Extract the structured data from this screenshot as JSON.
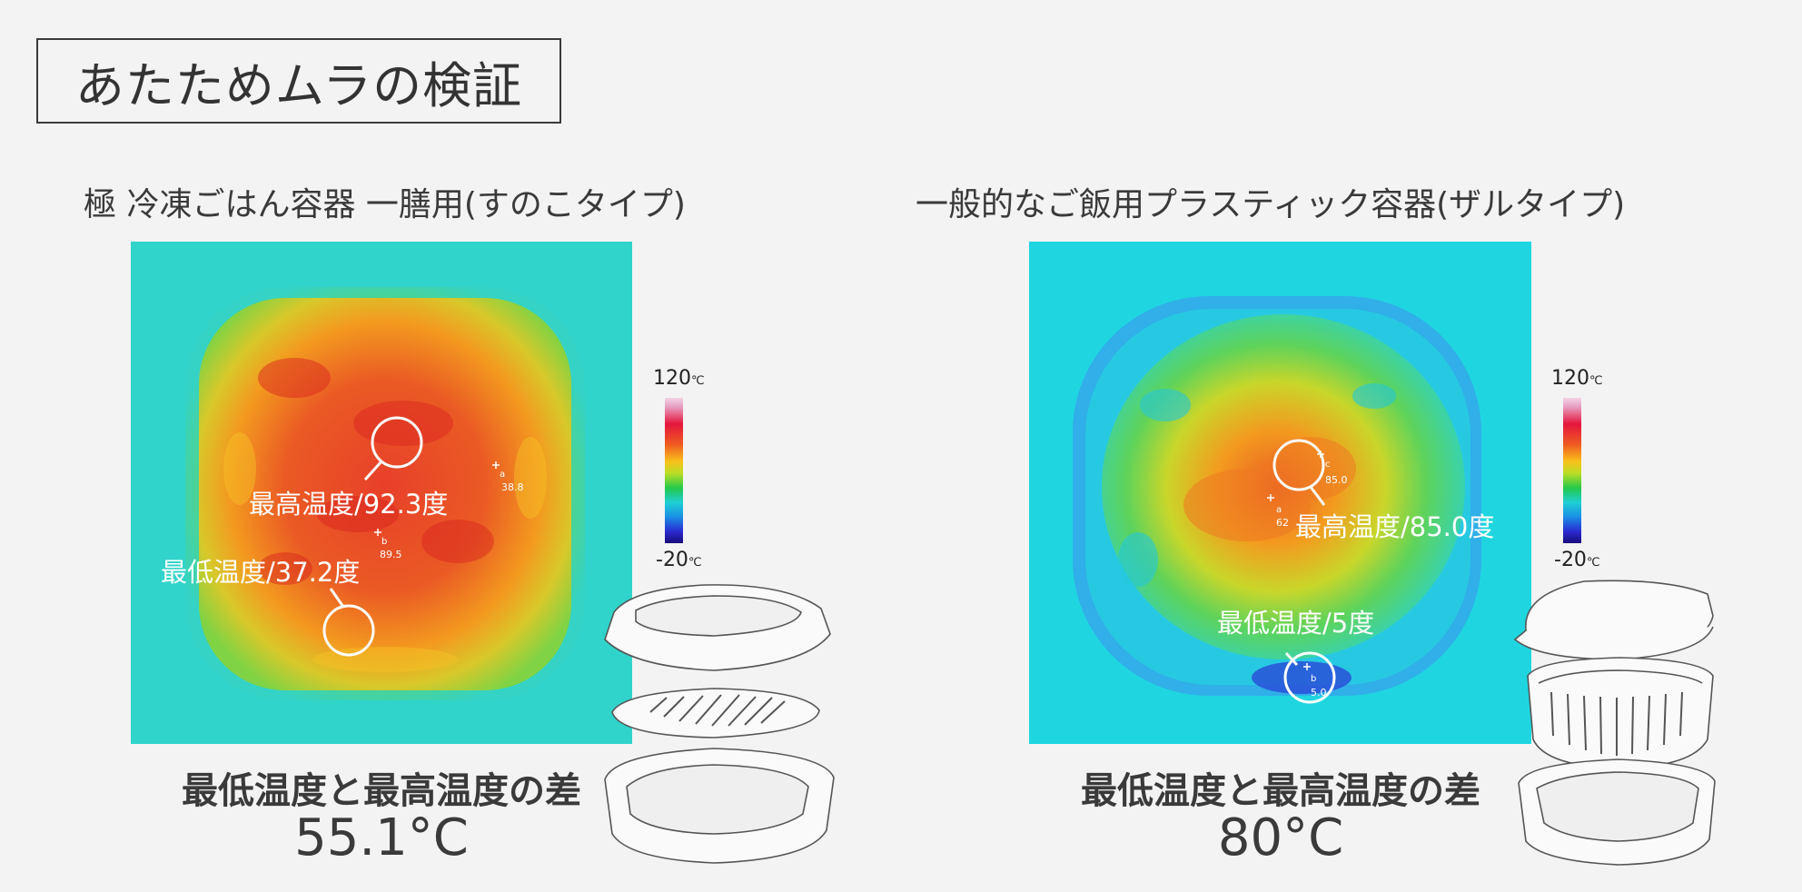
{
  "title": "あたためムラの検証",
  "scale": {
    "max": "120",
    "min": "-20",
    "unit": "℃"
  },
  "left_panel": {
    "heading": "極 冷凍ごはん容器 一膳用(すのこタイプ)",
    "max_label": "最高温度/92.3度",
    "min_label": "最低温度/37.2度",
    "point_a": {
      "letter": "a",
      "value": "38.8"
    },
    "point_b": {
      "letter": "b",
      "value": "89.5"
    },
    "diff_label": "最低温度と最高温度の差",
    "diff_value": "55.1°C"
  },
  "right_panel": {
    "heading": "一般的なご飯用プラスティック容器(ザルタイプ)",
    "max_label": "最高温度/85.0度",
    "min_label": "最低温度/5度",
    "point_a": {
      "letter": "a",
      "value": "62"
    },
    "point_b": {
      "letter": "b",
      "value": "5.0"
    },
    "point_c": {
      "letter": "c",
      "value": "85.0"
    },
    "diff_label": "最低温度と最高温度の差",
    "diff_value": "80°C"
  }
}
